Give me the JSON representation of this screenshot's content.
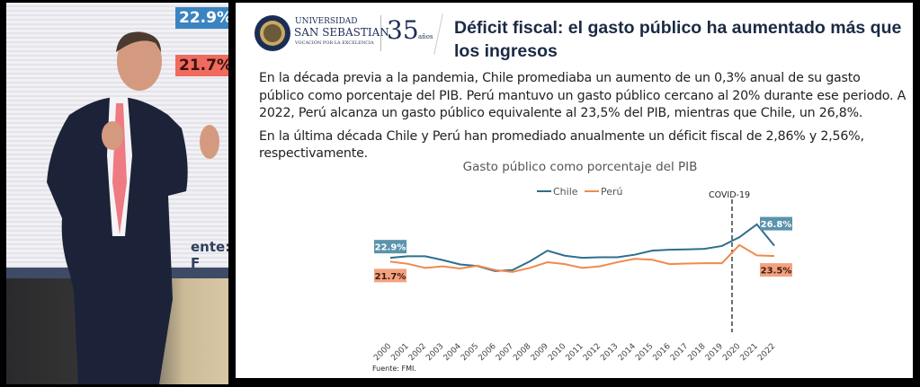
{
  "stage_screen": {
    "chile_label": "22.9%",
    "peru_label": "21.7%",
    "source_fragment": "ente: F"
  },
  "slide": {
    "logo": {
      "line1": "UNIVERSIDAD",
      "line2": "SAN SEBASTIAN",
      "line3": "VOCACIÓN POR LA EXCELENCIA",
      "anniversary": "35",
      "anniversary_sub": "años"
    },
    "title": "Déficit fiscal: el gasto público ha aumentado más que los ingresos",
    "paragraphs": [
      "En la década previa a la pandemia, Chile promediaba un aumento de un 0,3% anual de su gasto público como porcentaje del PIB. Perú mantuvo un gasto público cercano al 20% durante ese periodo. A 2022, Perú alcanza un gasto público equivalente al 23,5% del PIB, mientras que Chile, un 26,8%.",
      "En la última década Chile y Perú han promediado anualmente un déficit fiscal de 2,86% y 2,56%, respectivamente."
    ],
    "source": "Fuente: FMI."
  },
  "chart_data": {
    "type": "line",
    "title": "Gasto público como porcentaje del PIB",
    "xlabel": "",
    "ylabel": "",
    "x": [
      "2000",
      "2001",
      "2002",
      "2003",
      "2004",
      "2005",
      "2006",
      "2007",
      "2008",
      "2009",
      "2010",
      "2011",
      "2012",
      "2013",
      "2014",
      "2015",
      "2016",
      "2017",
      "2018",
      "2019",
      "2020",
      "2021",
      "2022"
    ],
    "ylim": [
      0,
      35
    ],
    "grid": false,
    "legend": "top-center",
    "series": [
      {
        "name": "Chile",
        "color": "#2e6e8e",
        "values": [
          22.9,
          23.4,
          23.4,
          22.2,
          20.8,
          20.3,
          18.7,
          19.0,
          21.8,
          25.2,
          23.6,
          22.9,
          23.1,
          23.1,
          23.9,
          25.2,
          25.5,
          25.6,
          25.8,
          26.7,
          29.5,
          33.6,
          26.8
        ],
        "labels": [
          {
            "index": 0,
            "text": "22.9%",
            "bg": "#5b93ad"
          },
          {
            "index": 22,
            "text": "26.8%",
            "bg": "#5b93ad"
          }
        ]
      },
      {
        "name": "Perú",
        "color": "#f08a4b",
        "values": [
          21.7,
          21.0,
          19.7,
          20.2,
          19.5,
          20.4,
          19.0,
          18.4,
          19.7,
          21.5,
          20.9,
          19.7,
          20.2,
          21.5,
          22.6,
          22.3,
          20.9,
          21.1,
          21.2,
          21.2,
          27.0,
          23.7,
          23.5
        ],
        "labels": [
          {
            "index": 0,
            "text": "21.7%",
            "bg": "#f4a27e"
          },
          {
            "index": 22,
            "text": "23.5%",
            "bg": "#f4a27e"
          }
        ]
      }
    ],
    "annotations": [
      {
        "text": "COVID-19",
        "between": [
          "2019",
          "2020"
        ],
        "style": "dashed-vertical-line"
      }
    ]
  }
}
